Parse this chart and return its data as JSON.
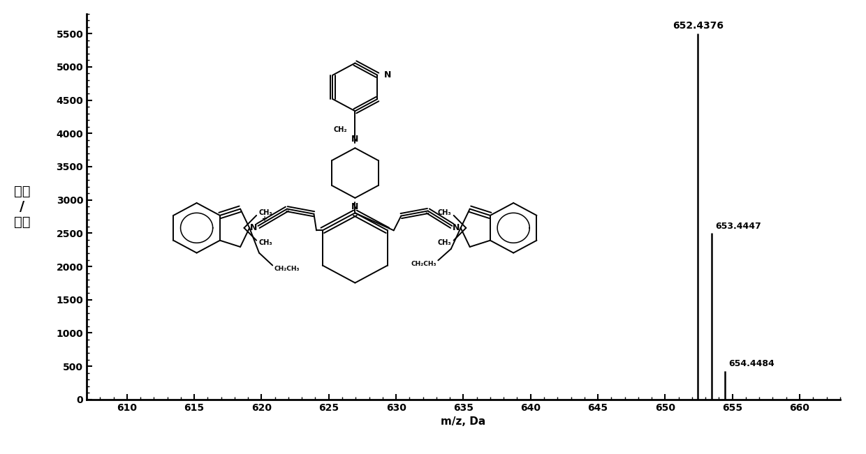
{
  "peaks": [
    {
      "mz": 652.4376,
      "intensity": 5500,
      "label": "652.4376"
    },
    {
      "mz": 653.4447,
      "intensity": 2500,
      "label": "653.4447"
    },
    {
      "mz": 654.4484,
      "intensity": 430,
      "label": "654.4484"
    }
  ],
  "xlim": [
    607,
    663
  ],
  "ylim": [
    0,
    5800
  ],
  "xticks": [
    610,
    615,
    620,
    625,
    630,
    635,
    640,
    645,
    650,
    655,
    660
  ],
  "yticks": [
    0,
    500,
    1000,
    1500,
    2000,
    2500,
    3000,
    3500,
    4000,
    4500,
    5000,
    5500
  ],
  "xlabel": "m/z, Da",
  "ylabel": "强度\n/\n计数",
  "background_color": "#ffffff",
  "line_color": "#000000",
  "label_fontsize": 9,
  "axis_fontsize": 11,
  "tick_fontsize": 10
}
